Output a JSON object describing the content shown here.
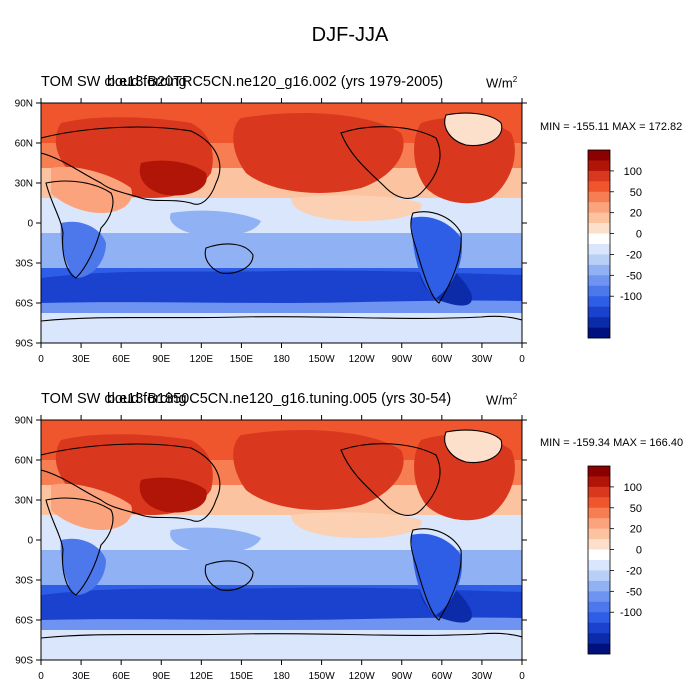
{
  "figure": {
    "title": "DJF-JJA",
    "colors": {
      "ocean_blue_deep": "#0a2fbf",
      "ocean_blue": "#3a6cf0",
      "ocean_light": "#c9ddf9",
      "land_red": "#d9381e",
      "land_orange": "#f57242",
      "peach": "#fbd0b3"
    }
  },
  "panels": [
    {
      "title_overlay_a": "TOM SW cloud forcing",
      "title_overlay_b": "b.e13.B20TRC5CN.ne120_g16.002 (yrs 1979-2005)",
      "units_main": "W/m",
      "units_exp": "2",
      "stats": "MIN = -155.11 MAX = 172.82"
    },
    {
      "title_overlay_a": "TOM SW cloud forcing",
      "title_overlay_b": "b.e13.B1850C5CN.ne120_g16.tuning.005 (yrs 30-54)",
      "units_main": "W/m",
      "units_exp": "2",
      "stats": "MIN = -159.34 MAX = 166.40"
    }
  ],
  "axes": {
    "lat_labels": [
      "90N",
      "60N",
      "30N",
      "0",
      "30S",
      "60S",
      "90S"
    ],
    "lon_labels": [
      "0",
      "30E",
      "60E",
      "90E",
      "120E",
      "150E",
      "180",
      "150W",
      "120W",
      "90W",
      "60W",
      "30W",
      "0"
    ]
  },
  "colorbar": {
    "colors": [
      "#8b0000",
      "#b11507",
      "#d9381e",
      "#f0562e",
      "#f67e52",
      "#fba37c",
      "#fbc39f",
      "#fde0cc",
      "#ffffff",
      "#d9e6fb",
      "#b8cff6",
      "#90b1f3",
      "#6e93f0",
      "#4c78ec",
      "#2f5ee6",
      "#1a42cf",
      "#0b2ba9",
      "#00107e"
    ],
    "labels": [
      "100",
      "50",
      "20",
      "0",
      "-20",
      "-50",
      "-100"
    ]
  }
}
